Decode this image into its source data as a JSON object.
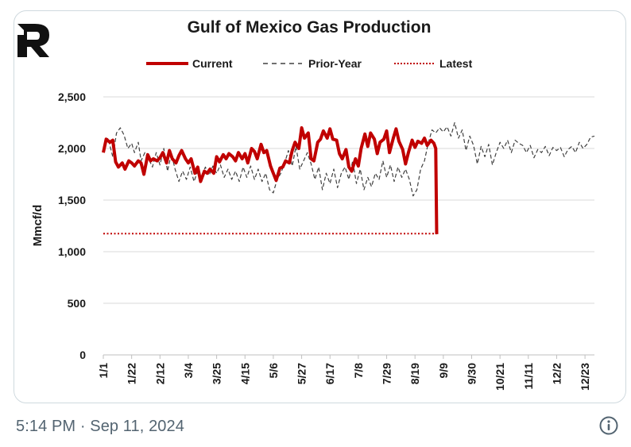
{
  "chart_data": {
    "type": "line",
    "title": "Gulf of Mexico Gas Production",
    "ylabel": "Mmcf/d",
    "xlabel": "",
    "ylim": [
      0,
      2500
    ],
    "yticks": [
      0,
      500,
      1000,
      1500,
      2000,
      2500
    ],
    "ytick_labels": [
      "0",
      "500",
      "1,000",
      "1,500",
      "2,000",
      "2,500"
    ],
    "x_range_weeks": [
      0,
      52
    ],
    "x_tick_weeks": [
      0,
      3,
      6,
      9,
      12,
      15,
      18,
      21,
      24,
      27,
      30,
      33,
      36,
      39,
      42,
      45,
      48,
      51
    ],
    "x_tick_labels": [
      "1/1",
      "1/22",
      "2/12",
      "3/4",
      "3/25",
      "4/15",
      "5/6",
      "5/27",
      "6/17",
      "7/8",
      "7/29",
      "8/19",
      "9/9",
      "9/30",
      "10/21",
      "11/11",
      "12/2",
      "12/23"
    ],
    "grid": true,
    "legend_position": "top",
    "series": [
      {
        "name": "Current",
        "style": "solid",
        "color": "#c00000",
        "points": [
          [
            0,
            1960
          ],
          [
            0.3,
            2090
          ],
          [
            0.7,
            2060
          ],
          [
            1,
            2080
          ],
          [
            1.3,
            1870
          ],
          [
            1.6,
            1820
          ],
          [
            2,
            1860
          ],
          [
            2.3,
            1800
          ],
          [
            2.7,
            1880
          ],
          [
            3,
            1860
          ],
          [
            3.3,
            1830
          ],
          [
            3.7,
            1880
          ],
          [
            4,
            1860
          ],
          [
            4.3,
            1750
          ],
          [
            4.7,
            1940
          ],
          [
            5,
            1880
          ],
          [
            5.3,
            1900
          ],
          [
            5.7,
            1880
          ],
          [
            6,
            1910
          ],
          [
            6.3,
            1960
          ],
          [
            6.7,
            1860
          ],
          [
            7,
            1980
          ],
          [
            7.3,
            1900
          ],
          [
            7.7,
            1860
          ],
          [
            8,
            1930
          ],
          [
            8.3,
            1980
          ],
          [
            8.7,
            1900
          ],
          [
            9,
            1860
          ],
          [
            9.3,
            1900
          ],
          [
            9.7,
            1760
          ],
          [
            10,
            1820
          ],
          [
            10.3,
            1680
          ],
          [
            10.7,
            1780
          ],
          [
            11,
            1760
          ],
          [
            11.3,
            1800
          ],
          [
            11.7,
            1760
          ],
          [
            12,
            1920
          ],
          [
            12.3,
            1870
          ],
          [
            12.7,
            1940
          ],
          [
            13,
            1900
          ],
          [
            13.3,
            1950
          ],
          [
            13.7,
            1920
          ],
          [
            14,
            1880
          ],
          [
            14.3,
            1960
          ],
          [
            14.7,
            1900
          ],
          [
            15,
            1950
          ],
          [
            15.3,
            1860
          ],
          [
            15.7,
            2000
          ],
          [
            16,
            1970
          ],
          [
            16.3,
            1900
          ],
          [
            16.7,
            2040
          ],
          [
            17,
            1960
          ],
          [
            17.3,
            1980
          ],
          [
            17.7,
            1830
          ],
          [
            18,
            1760
          ],
          [
            18.3,
            1690
          ],
          [
            18.7,
            1810
          ],
          [
            19,
            1820
          ],
          [
            19.3,
            1880
          ],
          [
            19.7,
            1860
          ],
          [
            20,
            1980
          ],
          [
            20.3,
            2060
          ],
          [
            20.7,
            2000
          ],
          [
            21,
            2200
          ],
          [
            21.3,
            2100
          ],
          [
            21.7,
            2150
          ],
          [
            22,
            1900
          ],
          [
            22.3,
            1880
          ],
          [
            22.7,
            2060
          ],
          [
            23,
            2090
          ],
          [
            23.3,
            2170
          ],
          [
            23.7,
            2100
          ],
          [
            24,
            2190
          ],
          [
            24.3,
            2090
          ],
          [
            24.7,
            2080
          ],
          [
            25,
            1950
          ],
          [
            25.3,
            1900
          ],
          [
            25.7,
            1990
          ],
          [
            26,
            1820
          ],
          [
            26.3,
            1780
          ],
          [
            26.7,
            1900
          ],
          [
            27,
            1830
          ],
          [
            27.3,
            2000
          ],
          [
            27.7,
            2140
          ],
          [
            28,
            2020
          ],
          [
            28.3,
            2150
          ],
          [
            28.7,
            2090
          ],
          [
            29,
            1950
          ],
          [
            29.3,
            2060
          ],
          [
            29.7,
            2090
          ],
          [
            30,
            2170
          ],
          [
            30.3,
            1960
          ],
          [
            30.7,
            2100
          ],
          [
            31,
            2190
          ],
          [
            31.3,
            2070
          ],
          [
            31.7,
            1990
          ],
          [
            32,
            1850
          ],
          [
            32.3,
            1960
          ],
          [
            32.7,
            2080
          ],
          [
            33,
            2010
          ],
          [
            33.3,
            2070
          ],
          [
            33.7,
            2050
          ],
          [
            34,
            2100
          ],
          [
            34.3,
            2030
          ],
          [
            34.7,
            2080
          ],
          [
            35,
            2050
          ],
          [
            35.2,
            2000
          ],
          [
            35.3,
            1170
          ]
        ]
      },
      {
        "name": "Prior-Year",
        "style": "dashed",
        "color": "#404040",
        "points": [
          [
            0,
            2010
          ],
          [
            0.5,
            2100
          ],
          [
            1,
            1920
          ],
          [
            1.4,
            2150
          ],
          [
            1.8,
            2200
          ],
          [
            2.2,
            2130
          ],
          [
            2.6,
            2000
          ],
          [
            3,
            2050
          ],
          [
            3.3,
            1960
          ],
          [
            3.7,
            2060
          ],
          [
            4,
            1880
          ],
          [
            4.4,
            1960
          ],
          [
            4.8,
            1900
          ],
          [
            5.2,
            1820
          ],
          [
            5.6,
            1960
          ],
          [
            6,
            1840
          ],
          [
            6.4,
            2000
          ],
          [
            6.8,
            1780
          ],
          [
            7.2,
            1950
          ],
          [
            7.6,
            1800
          ],
          [
            8,
            1680
          ],
          [
            8.4,
            1780
          ],
          [
            8.8,
            1700
          ],
          [
            9.2,
            1820
          ],
          [
            9.6,
            1680
          ],
          [
            10,
            1780
          ],
          [
            10.4,
            1720
          ],
          [
            10.8,
            1820
          ],
          [
            11.2,
            1740
          ],
          [
            11.6,
            1830
          ],
          [
            12,
            1760
          ],
          [
            12.4,
            1840
          ],
          [
            12.8,
            1720
          ],
          [
            13.2,
            1800
          ],
          [
            13.6,
            1700
          ],
          [
            14,
            1780
          ],
          [
            14.4,
            1680
          ],
          [
            14.8,
            1820
          ],
          [
            15.2,
            1720
          ],
          [
            15.6,
            1830
          ],
          [
            16,
            1700
          ],
          [
            16.4,
            1800
          ],
          [
            16.8,
            1680
          ],
          [
            17.2,
            1760
          ],
          [
            17.6,
            1600
          ],
          [
            18,
            1570
          ],
          [
            18.4,
            1700
          ],
          [
            18.8,
            1760
          ],
          [
            19.2,
            1860
          ],
          [
            19.6,
            1980
          ],
          [
            20,
            1830
          ],
          [
            20.4,
            2020
          ],
          [
            20.8,
            1800
          ],
          [
            21.2,
            1880
          ],
          [
            21.6,
            1960
          ],
          [
            22,
            1850
          ],
          [
            22.4,
            1700
          ],
          [
            22.8,
            1820
          ],
          [
            23.2,
            1600
          ],
          [
            23.6,
            1760
          ],
          [
            24,
            1660
          ],
          [
            24.4,
            1800
          ],
          [
            24.8,
            1620
          ],
          [
            25.2,
            1760
          ],
          [
            25.6,
            1820
          ],
          [
            26,
            1700
          ],
          [
            26.4,
            1880
          ],
          [
            26.8,
            1660
          ],
          [
            27.2,
            1800
          ],
          [
            27.6,
            1600
          ],
          [
            28,
            1720
          ],
          [
            28.4,
            1630
          ],
          [
            28.8,
            1760
          ],
          [
            29.2,
            1700
          ],
          [
            29.6,
            1880
          ],
          [
            30,
            1720
          ],
          [
            30.4,
            1840
          ],
          [
            30.8,
            1680
          ],
          [
            31.2,
            1820
          ],
          [
            31.6,
            1720
          ],
          [
            32,
            1800
          ],
          [
            32.4,
            1700
          ],
          [
            32.8,
            1540
          ],
          [
            33.2,
            1600
          ],
          [
            33.6,
            1800
          ],
          [
            34,
            1880
          ],
          [
            34.4,
            2050
          ],
          [
            34.8,
            2180
          ],
          [
            35.2,
            2150
          ],
          [
            35.6,
            2200
          ],
          [
            36,
            2160
          ],
          [
            36.4,
            2210
          ],
          [
            36.8,
            2120
          ],
          [
            37.2,
            2250
          ],
          [
            37.6,
            2100
          ],
          [
            38,
            2180
          ],
          [
            38.4,
            1980
          ],
          [
            38.8,
            2120
          ],
          [
            39.2,
            2030
          ],
          [
            39.6,
            1850
          ],
          [
            40,
            2020
          ],
          [
            40.4,
            1920
          ],
          [
            40.8,
            2040
          ],
          [
            41.2,
            1840
          ],
          [
            41.6,
            1960
          ],
          [
            42,
            2060
          ],
          [
            42.4,
            2000
          ],
          [
            42.8,
            2080
          ],
          [
            43.2,
            1960
          ],
          [
            43.6,
            2080
          ],
          [
            44,
            2050
          ],
          [
            44.4,
            2030
          ],
          [
            44.8,
            1960
          ],
          [
            45.2,
            2030
          ],
          [
            45.6,
            1910
          ],
          [
            46,
            1990
          ],
          [
            46.4,
            1960
          ],
          [
            46.8,
            2020
          ],
          [
            47.2,
            1930
          ],
          [
            47.6,
            2010
          ],
          [
            48,
            1980
          ],
          [
            48.4,
            2010
          ],
          [
            48.8,
            1920
          ],
          [
            49.2,
            1990
          ],
          [
            49.6,
            2020
          ],
          [
            50,
            1960
          ],
          [
            50.4,
            2060
          ],
          [
            50.8,
            2000
          ],
          [
            51.2,
            2040
          ],
          [
            51.6,
            2110
          ],
          [
            52,
            2120
          ]
        ]
      },
      {
        "name": "Latest",
        "style": "dotted",
        "color": "#c00000",
        "points": [
          [
            0,
            1175
          ],
          [
            35.3,
            1175
          ]
        ]
      }
    ]
  },
  "logo": {
    "letter": "R",
    "color": "#111111"
  },
  "footer": {
    "timestamp": "5:14 PM · Sep 11, 2024",
    "info_icon": "info-icon"
  }
}
